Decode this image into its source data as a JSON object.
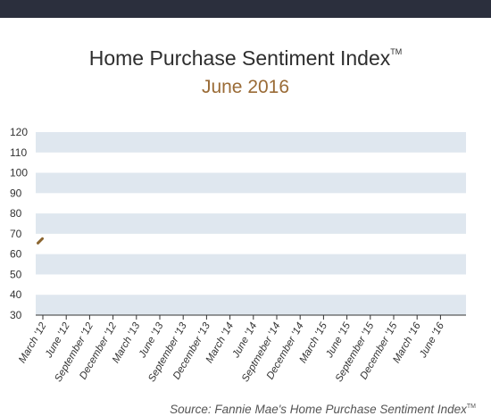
{
  "header": {
    "title": "Home Purchase Sentiment Index",
    "title_mark": "TM",
    "subtitle": "June 2016"
  },
  "footer": {
    "source": "Source: Fannie Mae's Home Purchase Sentiment Index",
    "source_mark": "TM"
  },
  "colors": {
    "topbar": "#2b2f3d",
    "band": "#dfe7ef",
    "line": "#8b6530",
    "subtitle": "#9a6b36"
  },
  "chart_data": {
    "type": "line",
    "title": "Home Purchase Sentiment Index",
    "subtitle": "June 2016",
    "xlabel": "",
    "ylabel": "",
    "ylim": [
      30,
      120
    ],
    "yticks": [
      30,
      40,
      50,
      60,
      70,
      80,
      90,
      100,
      110,
      120
    ],
    "grid": "alternating horizontal bands",
    "legend": "none",
    "categories": [
      "March '12",
      "June '12",
      "September '12",
      "December '12",
      "March '13",
      "June '13",
      "September '13",
      "December '13",
      "March '14",
      "June '14",
      "Septmeber '14",
      "December '14",
      "March '15",
      "June '15",
      "September '15",
      "December '15",
      "March '16",
      "June '16"
    ],
    "series": [
      {
        "x": [
          "March '12"
        ],
        "values": [
          66.5
        ]
      }
    ]
  }
}
